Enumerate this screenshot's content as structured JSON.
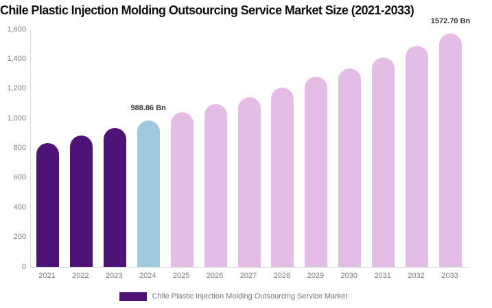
{
  "title": "Chile Plastic Injection Molding Outsourcing Service Market Size (2021-2033)",
  "legend": {
    "label": "Chile Plastic Injection Molding Outsourcing Service Market",
    "swatch_color": "#4F1277"
  },
  "colors": {
    "background": "#FFFFFF",
    "title_text": "#111111",
    "bar_purple": "#4F1277",
    "bar_blue": "#A1C9DE",
    "bar_pink": "#E4BDE7",
    "axis_line": "#D9D9D9",
    "tick_text": "#7F7F7F",
    "annotation_text": "#333333",
    "legend_text": "#757575"
  },
  "chart_data": {
    "type": "bar",
    "title": "Chile Plastic Injection Molding Outsourcing Service Market Size (2021-2033)",
    "unit": "Bn",
    "categories": [
      "2021",
      "2022",
      "2023",
      "2024",
      "2025",
      "2026",
      "2027",
      "2028",
      "2029",
      "2030",
      "2031",
      "2032",
      "2033"
    ],
    "values": [
      836,
      885,
      938,
      988.86,
      1040,
      1096,
      1142,
      1210,
      1280,
      1337,
      1410,
      1490,
      1572.7
    ],
    "bar_colors": [
      "#4F1277",
      "#4F1277",
      "#4F1277",
      "#A1C9DE",
      "#E4BDE7",
      "#E4BDE7",
      "#E4BDE7",
      "#E4BDE7",
      "#E4BDE7",
      "#E4BDE7",
      "#E4BDE7",
      "#E4BDE7",
      "#E4BDE7"
    ],
    "annotations": [
      {
        "category": "2024",
        "text": "988.86 Bn"
      },
      {
        "category": "2033",
        "text": "1572.70 Bn"
      }
    ],
    "ylim": [
      0,
      1600
    ],
    "ytick_step": 200,
    "ytick_values": [
      0,
      200,
      400,
      600,
      800,
      1000,
      1200,
      1400,
      1600
    ],
    "ytick_labels": [
      "0",
      "200",
      "400",
      "600",
      "800",
      "1,000",
      "1,200",
      "1,400",
      "1,600"
    ],
    "grid": false,
    "legend_position": "bottom",
    "legend_entries": [
      "Chile Plastic Injection Molding Outsourcing Service Market"
    ]
  }
}
